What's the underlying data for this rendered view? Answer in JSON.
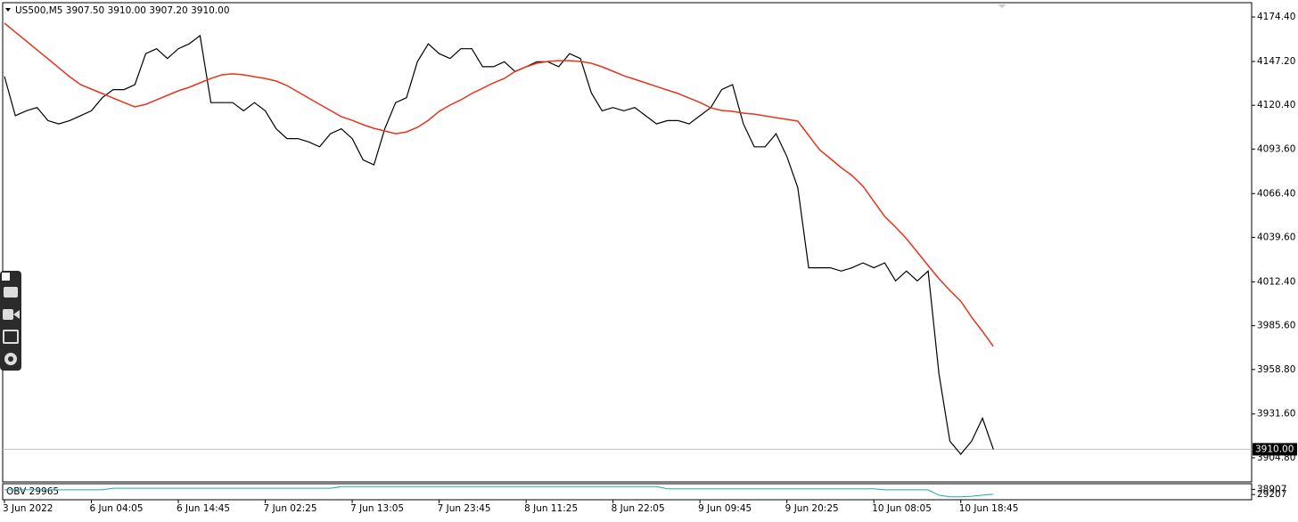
{
  "chart_data": {
    "type": "line",
    "title": "US500,M5  3907.50 3910.00 3907.20 3910.00",
    "categories": [
      "3 Jun 2022",
      null,
      null,
      null,
      null,
      null,
      null,
      null,
      "6 Jun 04:05",
      null,
      null,
      null,
      null,
      null,
      null,
      null,
      "6 Jun 14:45",
      null,
      null,
      null,
      null,
      null,
      null,
      null,
      "7 Jun 02:25",
      null,
      null,
      null,
      null,
      null,
      null,
      null,
      "7 Jun 13:05",
      null,
      null,
      null,
      null,
      null,
      null,
      null,
      "7 Jun 23:45",
      null,
      null,
      null,
      null,
      null,
      null,
      null,
      "8 Jun 11:25",
      null,
      null,
      null,
      null,
      null,
      null,
      null,
      "8 Jun 22:05",
      null,
      null,
      null,
      null,
      null,
      null,
      null,
      "9 Jun 09:45",
      null,
      null,
      null,
      null,
      null,
      null,
      null,
      "9 Jun 20:25",
      null,
      null,
      null,
      null,
      null,
      null,
      null,
      "10 Jun 08:05",
      null,
      null,
      null,
      null,
      null,
      null,
      null,
      "10 Jun 18:45",
      null,
      null,
      null
    ],
    "series": [
      {
        "color": "#000000",
        "values": [
          4138,
          4114,
          4117,
          4119,
          4111,
          4109,
          4111,
          4114,
          4117,
          4125,
          4130,
          4130,
          4133,
          4152,
          4155,
          4149,
          4155,
          4158,
          4163,
          4122,
          4122,
          4122,
          4117,
          4122,
          4117,
          4106,
          4100,
          4100,
          4098,
          4095,
          4103,
          4106,
          4100,
          4087,
          4084,
          4106,
          4122,
          4125,
          4147,
          4158,
          4152,
          4149,
          4155,
          4155,
          4144,
          4144,
          4147,
          4141,
          4144,
          4147,
          4147,
          4144,
          4152,
          4149,
          4128,
          4117,
          4119,
          4117,
          4119,
          4114,
          4109,
          4111,
          4111,
          4109,
          4114,
          4119,
          4130,
          4133,
          4109,
          4095,
          4095,
          4103,
          4089,
          4070,
          4021,
          4021,
          4021,
          4019,
          4021,
          4024,
          4021,
          4024,
          4013,
          4019,
          4013,
          4019,
          3956,
          3915,
          3907,
          3915,
          3929,
          3910
        ]
      },
      {
        "color": "#e8341c",
        "values": [
          4170.6,
          4165.1,
          4159.7,
          4154.2,
          4148.8,
          4143.3,
          4137.9,
          4133.0,
          4130.3,
          4127.6,
          4124.8,
          4122.1,
          4119.4,
          4121.0,
          4123.7,
          4126.5,
          4129.2,
          4131.4,
          4134.1,
          4136.8,
          4139.0,
          4139.6,
          4139.0,
          4137.9,
          4136.8,
          4135.2,
          4132.5,
          4128.6,
          4124.8,
          4121.0,
          4117.2,
          4113.4,
          4111.2,
          4108.5,
          4106.3,
          4104.7,
          4103.0,
          4104.1,
          4106.9,
          4111.2,
          4116.7,
          4120.5,
          4123.7,
          4127.6,
          4130.8,
          4134.1,
          4136.8,
          4141.2,
          4143.9,
          4146.1,
          4147.2,
          4147.7,
          4147.7,
          4147.2,
          4146.1,
          4143.9,
          4141.2,
          4138.4,
          4136.3,
          4134.1,
          4131.9,
          4129.7,
          4127.6,
          4124.8,
          4122.1,
          4118.8,
          4117.2,
          4116.7,
          4115.6,
          4115.0,
          4113.9,
          4112.8,
          4111.8,
          4110.7,
          4102.0,
          4093.2,
          4087.8,
          4082.3,
          4077.4,
          4070.9,
          4061.6,
          4052.4,
          4045.9,
          4038.8,
          4030.6,
          4022.4,
          4014.3,
          4007.2,
          4000.6,
          3990.8,
          3982.1,
          3972.9
        ]
      }
    ],
    "ylim": [
      3890.6,
      4182.6
    ],
    "yticks": [
      {
        "value": 4174.4,
        "label": "4174.40"
      },
      {
        "value": 4147.2,
        "label": "4147.20"
      },
      {
        "value": 4120.4,
        "label": "4120.40"
      },
      {
        "value": 4093.6,
        "label": "4093.60"
      },
      {
        "value": 4066.4,
        "label": "4066.40"
      },
      {
        "value": 4039.6,
        "label": "4039.60"
      },
      {
        "value": 4012.4,
        "label": "4012.40"
      },
      {
        "value": 3985.6,
        "label": "3985.60"
      },
      {
        "value": 3958.8,
        "label": "3958.80"
      },
      {
        "value": 3931.6,
        "label": "3931.60"
      },
      {
        "value": 3904.8,
        "label": "3904.80"
      }
    ],
    "last_price": {
      "value": 3910,
      "label": "3910.00"
    },
    "indicator": {
      "label": "OBV 29965",
      "color": "#20a8a8",
      "ylim": [
        19505,
        49491
      ],
      "yticks": [
        38907,
        29207
      ],
      "values": [
        38000,
        38000,
        38000,
        38000,
        38000,
        38000,
        38000,
        38000,
        38000,
        38000,
        41000,
        41000,
        41000,
        41000,
        41000,
        41000,
        41000,
        41000,
        41000,
        41000,
        41000,
        41000,
        41000,
        41000,
        41000,
        41000,
        41000,
        41000,
        41000,
        41000,
        41000,
        44000,
        44000,
        44000,
        44000,
        44000,
        44000,
        44000,
        44000,
        44000,
        44000,
        44000,
        44000,
        44000,
        44000,
        44000,
        44000,
        44000,
        44000,
        44000,
        44000,
        44000,
        44000,
        44000,
        44000,
        44000,
        44000,
        44000,
        44000,
        44000,
        44000,
        40000,
        40000,
        40000,
        40000,
        40000,
        40000,
        40000,
        40000,
        40000,
        40000,
        40000,
        40000,
        40000,
        40000,
        40000,
        40000,
        40000,
        40000,
        40000,
        40000,
        38000,
        38000,
        38000,
        38000,
        38000,
        28000,
        25000,
        25000,
        26000,
        28000,
        29965
      ]
    }
  }
}
